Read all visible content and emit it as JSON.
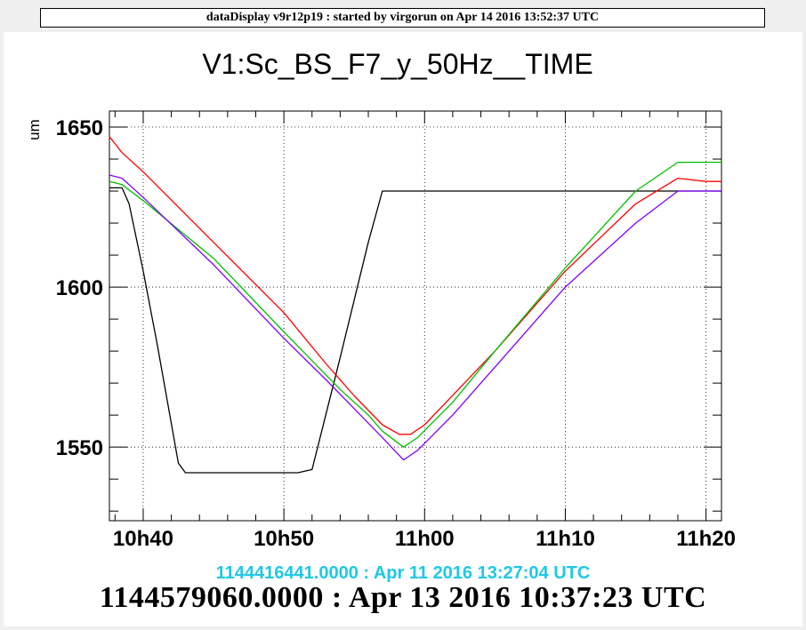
{
  "header": {
    "title": "dataDisplay v9r12p19 : started by virgorun on Apr 14 2016 13:52:37 UTC"
  },
  "plot": {
    "channel_title": "V1:Sc_BS_F7_y_50Hz__TIME",
    "start_time_label": "1144416441.0000 : Apr 11 2016 13:27:04 UTC",
    "offset_time_label": "1144579060.0000 : Apr 13 2016 10:37:23 UTC"
  },
  "chart_data": {
    "type": "line",
    "title": "V1:Sc_BS_F7_y_50Hz__TIME",
    "xlabel": "",
    "ylabel": "um",
    "x_unit": "minutes after 10h00",
    "xlim": [
      37.6,
      81.1
    ],
    "ylim": [
      1527,
      1655
    ],
    "x_ticks": [
      {
        "value": 40,
        "label": "10h40"
      },
      {
        "value": 50,
        "label": "10h50"
      },
      {
        "value": 60,
        "label": "11h00"
      },
      {
        "value": 70,
        "label": "11h10"
      },
      {
        "value": 80,
        "label": "11h20"
      }
    ],
    "y_ticks": [
      {
        "value": 1550,
        "label": "1550"
      },
      {
        "value": 1600,
        "label": "1600"
      },
      {
        "value": 1650,
        "label": "1650"
      }
    ],
    "grid": true,
    "series": [
      {
        "color": "#000000",
        "points": [
          [
            37.6,
            1631
          ],
          [
            38.5,
            1631
          ],
          [
            39,
            1626
          ],
          [
            40,
            1605
          ],
          [
            41,
            1582
          ],
          [
            42.5,
            1545
          ],
          [
            43,
            1542
          ],
          [
            45,
            1542
          ],
          [
            48,
            1542
          ],
          [
            51,
            1542
          ],
          [
            52,
            1543
          ],
          [
            54,
            1578
          ],
          [
            56,
            1614
          ],
          [
            57,
            1630
          ],
          [
            60,
            1630
          ],
          [
            65,
            1630
          ],
          [
            70,
            1630
          ],
          [
            75,
            1630
          ],
          [
            78,
            1630
          ],
          [
            81.1,
            1630
          ]
        ]
      },
      {
        "color": "#ff0000",
        "points": [
          [
            37.6,
            1647
          ],
          [
            38.5,
            1642
          ],
          [
            40,
            1636
          ],
          [
            45,
            1614
          ],
          [
            50,
            1592
          ],
          [
            53,
            1576
          ],
          [
            55,
            1566
          ],
          [
            57,
            1557
          ],
          [
            58.2,
            1554
          ],
          [
            59,
            1554
          ],
          [
            60,
            1557
          ],
          [
            65,
            1580
          ],
          [
            70,
            1605
          ],
          [
            75,
            1626
          ],
          [
            78,
            1634
          ],
          [
            80,
            1633
          ],
          [
            81.1,
            1633
          ]
        ]
      },
      {
        "color": "#00c000",
        "points": [
          [
            37.6,
            1633
          ],
          [
            38.5,
            1632
          ],
          [
            40,
            1627
          ],
          [
            45,
            1609
          ],
          [
            50,
            1586
          ],
          [
            54,
            1568
          ],
          [
            56,
            1560
          ],
          [
            57,
            1555
          ],
          [
            58.5,
            1550
          ],
          [
            59.5,
            1553
          ],
          [
            62,
            1564
          ],
          [
            65,
            1580
          ],
          [
            70,
            1606
          ],
          [
            75,
            1630
          ],
          [
            78,
            1639
          ],
          [
            81.1,
            1639
          ]
        ]
      },
      {
        "color": "#8000ff",
        "points": [
          [
            37.6,
            1635
          ],
          [
            38.5,
            1634
          ],
          [
            40,
            1628
          ],
          [
            45,
            1607
          ],
          [
            50,
            1584
          ],
          [
            53,
            1571
          ],
          [
            55,
            1562
          ],
          [
            57,
            1553
          ],
          [
            58.5,
            1546
          ],
          [
            59.5,
            1549
          ],
          [
            62,
            1560
          ],
          [
            65,
            1575
          ],
          [
            70,
            1600
          ],
          [
            75,
            1620
          ],
          [
            78,
            1630
          ],
          [
            81.1,
            1630
          ]
        ]
      }
    ]
  }
}
